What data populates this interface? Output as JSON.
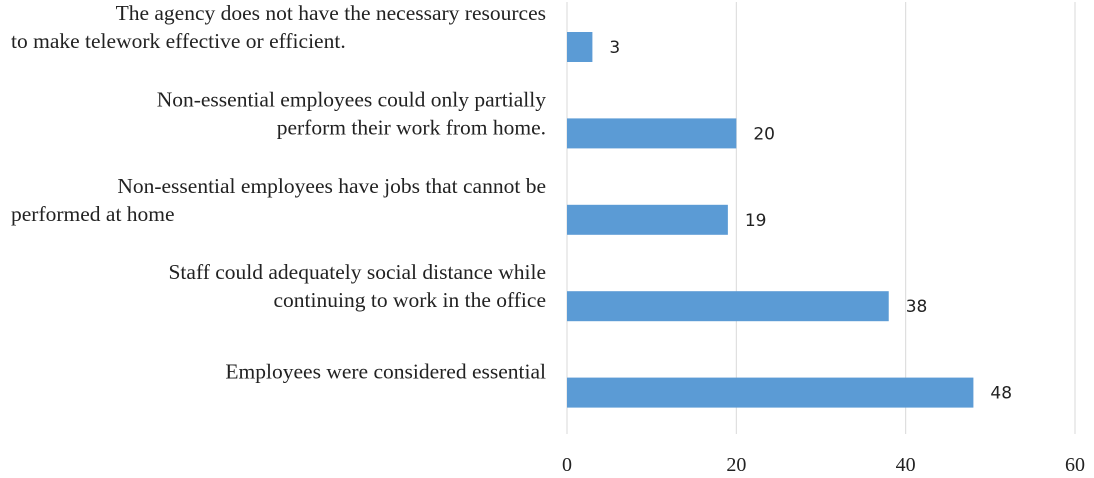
{
  "chart_data": {
    "type": "bar",
    "orientation": "horizontal",
    "categories": [
      [
        "The agency does not have the necessary resources",
        "to make telework effective or efficient."
      ],
      [
        "Non-essential employees could only partially",
        "perform their work from home."
      ],
      [
        "Non-essential employees have jobs that cannot be",
        "performed at home"
      ],
      [
        "Staff could adequately social distance while",
        "continuing to work in the office"
      ],
      [
        "Employees were considered essential"
      ]
    ],
    "values": [
      3,
      20,
      19,
      38,
      48
    ],
    "xlim": [
      0,
      60
    ],
    "xticks": [
      0,
      20,
      40,
      60
    ],
    "xtick_labels": [
      "0",
      "20",
      "40",
      "60"
    ],
    "title": "",
    "xlabel": "",
    "ylabel": "",
    "grid": "vertical",
    "legend": "none",
    "data_labels": true
  },
  "colors": {
    "bar": "#5B9BD5",
    "grid": "#D9D9D9",
    "text": "#222222"
  }
}
